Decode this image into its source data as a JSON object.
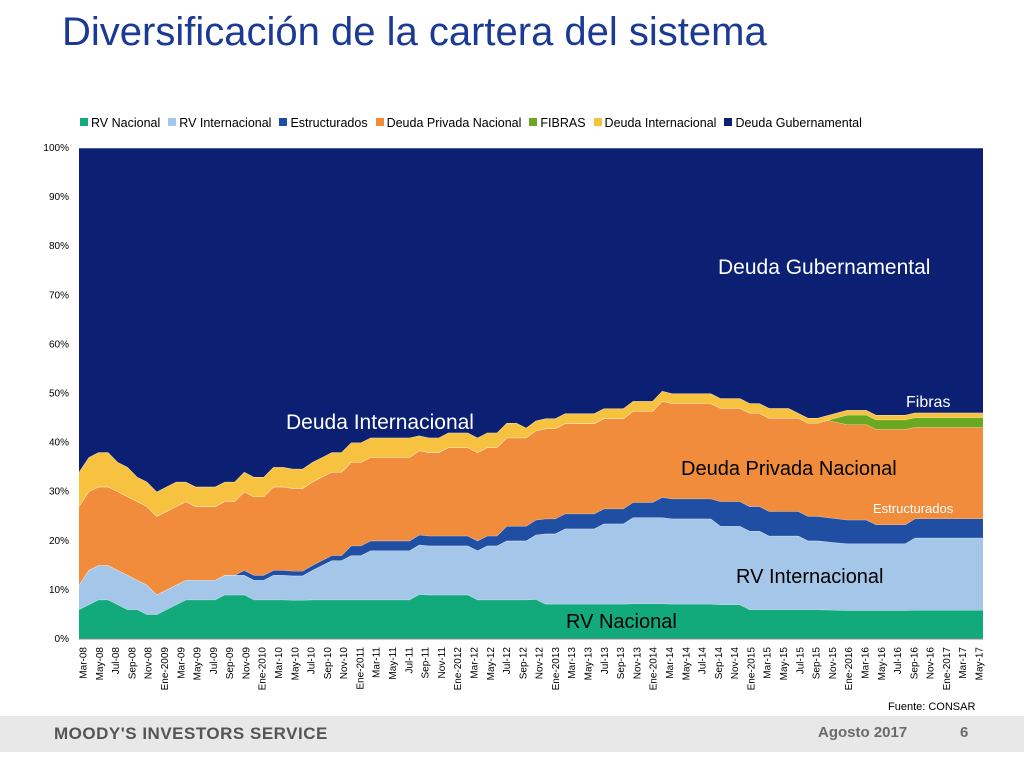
{
  "slide": {
    "title": "Diversificación de la cartera del sistema",
    "source": "Fuente: CONSAR",
    "footer_brand": "MOODY'S INVESTORS SERVICE",
    "footer_date": "Agosto 2017",
    "page_number": "6"
  },
  "colors": {
    "title": "#1a3a94",
    "rv_nacional": "#12aa7a",
    "rv_internacional": "#a4c6e8",
    "estructurados": "#1f4ea3",
    "deuda_privada_nacional": "#f08c3b",
    "fibras": "#6aa822",
    "deuda_internacional": "#f7c23f",
    "deuda_gubernamental": "#0b1f73"
  },
  "chart_data": {
    "type": "area",
    "stacked": true,
    "ylim": [
      0,
      100
    ],
    "y_ticks": [
      "0%",
      "10%",
      "20%",
      "30%",
      "40%",
      "50%",
      "60%",
      "70%",
      "80%",
      "90%",
      "100%"
    ],
    "x_tick_labels": [
      "Mar-08",
      "May-08",
      "Jul-08",
      "Sep-08",
      "Nov-08",
      "Ene-2009",
      "Mar-09",
      "May-09",
      "Jul-09",
      "Sep-09",
      "Nov-09",
      "Ene-2010",
      "Mar-10",
      "May-10",
      "Jul-10",
      "Sep-10",
      "Nov-10",
      "Ene-2011",
      "Mar-11",
      "May-11",
      "Jul-11",
      "Sep-11",
      "Nov-11",
      "Ene-2012",
      "Mar-12",
      "May-12",
      "Jul-12",
      "Sep-12",
      "Nov-12",
      "Ene-2013",
      "Mar-13",
      "May-13",
      "Jul-13",
      "Sep-13",
      "Nov-13",
      "Ene-2014",
      "Mar-14",
      "May-14",
      "Jul-14",
      "Sep-14",
      "Nov-14",
      "Ene-2015",
      "Mar-15",
      "May-15",
      "Jul-15",
      "Sep-15",
      "Nov-15",
      "Ene-2016",
      "Mar-16",
      "May-16",
      "Jul-16",
      "Sep-16",
      "Nov-16",
      "Ene-2017",
      "Mar-17",
      "May-17"
    ],
    "legend_position": "top",
    "series": [
      {
        "name": "RV Nacional",
        "key": "rv_nacional",
        "values": [
          6,
          7,
          8,
          8,
          7,
          6,
          6,
          5,
          5,
          6,
          7,
          8,
          8,
          8,
          8,
          9,
          9,
          9,
          8,
          8,
          8,
          8,
          8,
          8,
          8,
          8,
          8,
          8,
          8,
          8,
          8,
          8,
          8,
          8,
          8,
          9,
          9,
          9,
          9,
          9,
          9,
          8,
          8,
          8,
          8,
          8,
          8,
          8,
          7,
          7,
          7,
          7,
          7,
          7,
          7,
          7,
          7,
          7,
          7,
          7,
          7,
          7,
          7,
          7,
          7,
          7,
          7,
          7,
          7,
          6,
          6,
          6,
          6,
          6,
          6,
          6,
          6,
          6,
          6,
          6,
          6,
          6,
          6,
          6,
          6,
          6,
          6,
          6,
          6,
          6,
          6,
          6,
          6,
          6
        ]
      },
      {
        "name": "RV Internacional",
        "key": "rv_internacional",
        "values": [
          5,
          7,
          7,
          7,
          7,
          7,
          6,
          6,
          4,
          4,
          4,
          4,
          4,
          4,
          4,
          4,
          4,
          4,
          4,
          4,
          5,
          5,
          5,
          5,
          6,
          7,
          8,
          8,
          9,
          9,
          10,
          10,
          10,
          10,
          10,
          10,
          10,
          10,
          10,
          10,
          10,
          10,
          11,
          11,
          12,
          12,
          12,
          13,
          14,
          14,
          15,
          15,
          15,
          15,
          16,
          16,
          16,
          17,
          17,
          17,
          17,
          17,
          17,
          17,
          17,
          17,
          16,
          16,
          16,
          16,
          16,
          15,
          15,
          15,
          15,
          14,
          14,
          14,
          14,
          14,
          14,
          14,
          14,
          14,
          14,
          14,
          15,
          15,
          15,
          15,
          15,
          15,
          15,
          15
        ]
      },
      {
        "name": "Estructurados",
        "key": "estructurados",
        "values": [
          0,
          0,
          0,
          0,
          0,
          0,
          0,
          0,
          0,
          0,
          0,
          0,
          0,
          0,
          0,
          0,
          0,
          1,
          1,
          1,
          1,
          1,
          1,
          1,
          1,
          1,
          1,
          1,
          2,
          2,
          2,
          2,
          2,
          2,
          2,
          2,
          2,
          2,
          2,
          2,
          2,
          2,
          2,
          2,
          3,
          3,
          3,
          3,
          3,
          3,
          3,
          3,
          3,
          3,
          3,
          3,
          3,
          3,
          3,
          3,
          4,
          4,
          4,
          4,
          4,
          4,
          5,
          5,
          5,
          5,
          5,
          5,
          5,
          5,
          5,
          5,
          5,
          5,
          5,
          5,
          5,
          5,
          4,
          4,
          4,
          4,
          4,
          4,
          4,
          4,
          4,
          4,
          4,
          4
        ]
      },
      {
        "name": "Deuda Privada Nacional",
        "key": "deuda_privada_nacional",
        "values": [
          16,
          16,
          16,
          16,
          16,
          16,
          16,
          16,
          16,
          16,
          16,
          16,
          15,
          15,
          15,
          15,
          15,
          16,
          16,
          16,
          17,
          17,
          17,
          17,
          17,
          17,
          17,
          17,
          17,
          17,
          17,
          17,
          17,
          17,
          17,
          17,
          17,
          17,
          18,
          18,
          18,
          18,
          18,
          18,
          18,
          18,
          18,
          18,
          18,
          18,
          18,
          18,
          18,
          18,
          18,
          18,
          18,
          18,
          18,
          18,
          19,
          19,
          19,
          19,
          19,
          19,
          19,
          19,
          19,
          19,
          19,
          19,
          19,
          19,
          19,
          19,
          19,
          20,
          20,
          20,
          20,
          20,
          20,
          20,
          20,
          20,
          19,
          19,
          19,
          19,
          19,
          19,
          19,
          19
        ]
      },
      {
        "name": "FIBRAS",
        "key": "fibras",
        "values": [
          0,
          0,
          0,
          0,
          0,
          0,
          0,
          0,
          0,
          0,
          0,
          0,
          0,
          0,
          0,
          0,
          0,
          0,
          0,
          0,
          0,
          0,
          0,
          0,
          0,
          0,
          0,
          0,
          0,
          0,
          0,
          0,
          0,
          0,
          0,
          0,
          0,
          0,
          0,
          0,
          0,
          0,
          0,
          0,
          0,
          0,
          0,
          0,
          0,
          0,
          0,
          0,
          0,
          0,
          0,
          0,
          0,
          0,
          0,
          0,
          0,
          0,
          0,
          0,
          0,
          0,
          0,
          0,
          0,
          0,
          0,
          0,
          0,
          0,
          0,
          0,
          0,
          0,
          1,
          2,
          2,
          2,
          2,
          2,
          2,
          2,
          2,
          2,
          2,
          2,
          2,
          2,
          2,
          2
        ]
      },
      {
        "name": "Deuda Internacional",
        "key": "deuda_internacional",
        "values": [
          7,
          7,
          7,
          7,
          6,
          6,
          5,
          5,
          5,
          5,
          5,
          4,
          4,
          4,
          4,
          4,
          4,
          4,
          4,
          4,
          4,
          4,
          4,
          4,
          4,
          4,
          4,
          4,
          4,
          4,
          4,
          4,
          4,
          4,
          4,
          3,
          3,
          3,
          3,
          3,
          3,
          3,
          3,
          3,
          3,
          3,
          2,
          2,
          2,
          2,
          2,
          2,
          2,
          2,
          2,
          2,
          2,
          2,
          2,
          2,
          2,
          2,
          2,
          2,
          2,
          2,
          2,
          2,
          2,
          2,
          2,
          2,
          2,
          2,
          1,
          1,
          1,
          1,
          1,
          1,
          1,
          1,
          1,
          1,
          1,
          1,
          1,
          1,
          1,
          1,
          1,
          1,
          1,
          1
        ]
      },
      {
        "name": "Deuda Gubernamental",
        "key": "deuda_gubernamental",
        "values": [
          66,
          63,
          62,
          62,
          64,
          65,
          67,
          68,
          70,
          69,
          68,
          68,
          69,
          69,
          69,
          68,
          68,
          66,
          67,
          67,
          65,
          65,
          66,
          66,
          64,
          63,
          62,
          62,
          60,
          60,
          59,
          59,
          59,
          59,
          59,
          58,
          59,
          59,
          58,
          58,
          58,
          59,
          58,
          58,
          56,
          56,
          57,
          55,
          54,
          54,
          53,
          53,
          53,
          53,
          52,
          52,
          52,
          50,
          50,
          50,
          48,
          49,
          49,
          49,
          49,
          49,
          51,
          51,
          51,
          52,
          52,
          53,
          53,
          53,
          54,
          55,
          55,
          55,
          55,
          55,
          55,
          55,
          56,
          56,
          56,
          56,
          55,
          55,
          55,
          55,
          55,
          55,
          55,
          55
        ]
      }
    ],
    "annotations": {
      "deuda_gubernamental": "Deuda Gubernamental",
      "deuda_internacional": "Deuda Internacional",
      "fibras": "Fibras",
      "deuda_privada_nacional": "Deuda Privada Nacional",
      "estructurados": "Estructurados",
      "rv_internacional": "RV Internacional",
      "rv_nacional": "RV Nacional"
    }
  }
}
